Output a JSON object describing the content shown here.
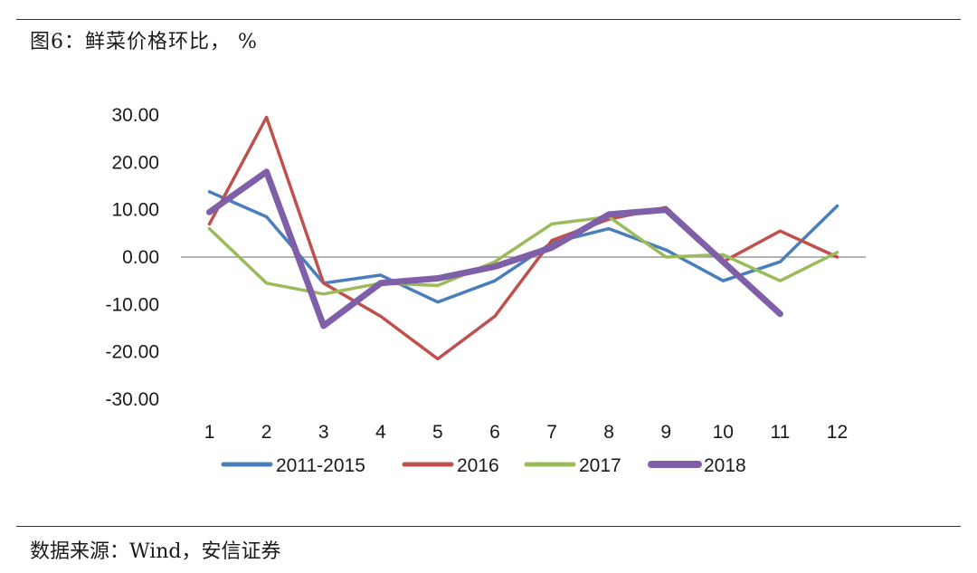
{
  "header": {
    "title": "图6：鲜菜价格环比， %"
  },
  "footer": {
    "source": "数据来源：Wind，安信证券"
  },
  "chart_data": {
    "type": "line",
    "title": "图6：鲜菜价格环比， %",
    "xlabel": "",
    "ylabel": "",
    "categories": [
      "1",
      "2",
      "3",
      "4",
      "5",
      "6",
      "7",
      "8",
      "9",
      "10",
      "11",
      "12"
    ],
    "ylim": [
      -30,
      30
    ],
    "yticks": [
      "30.00",
      "20.00",
      "10.00",
      "0.00",
      "-10.00",
      "-20.00",
      "-30.00"
    ],
    "ytick_values": [
      30,
      20,
      10,
      0,
      -10,
      -20,
      -30
    ],
    "grid": false,
    "legend_position": "bottom",
    "series": [
      {
        "name": "2011-2015",
        "color": "#4a7ebb",
        "width": 3.5,
        "values": [
          13.8,
          8.5,
          -5.5,
          -3.8,
          -9.5,
          -5.0,
          3.0,
          6.0,
          1.5,
          -5.0,
          -1.0,
          10.8
        ]
      },
      {
        "name": "2016",
        "color": "#c0504d",
        "width": 3.5,
        "values": [
          7.0,
          29.5,
          -5.5,
          -12.5,
          -21.5,
          -12.5,
          3.5,
          8.0,
          10.5,
          -1.0,
          5.5,
          0.0
        ]
      },
      {
        "name": "2017",
        "color": "#9bbb59",
        "width": 3.5,
        "values": [
          6.0,
          -5.5,
          -7.8,
          -5.5,
          -6.0,
          -1.0,
          7.0,
          8.5,
          0.0,
          0.5,
          -5.0,
          1.0
        ]
      },
      {
        "name": "2018",
        "color": "#7f5fa8",
        "width": 7,
        "values": [
          9.5,
          18.0,
          -14.5,
          -5.5,
          -4.5,
          -2.0,
          2.0,
          9.0,
          10.0,
          -1.0,
          -12.0,
          null
        ]
      }
    ]
  }
}
